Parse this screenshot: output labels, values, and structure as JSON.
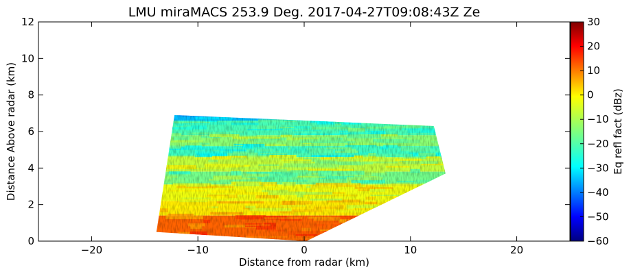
{
  "chart_data": {
    "type": "heatmap",
    "title": "LMU miraMACS 253.9 Deg. 2017-04-27T09:08:43Z  Ze",
    "xlabel": "Distance from radar (km)",
    "ylabel": "Distance Above radar  (km)",
    "xlim": [
      -25,
      25
    ],
    "ylim": [
      0,
      12
    ],
    "xticks": [
      -20,
      -10,
      0,
      10,
      20
    ],
    "xtick_labels": [
      "−20",
      "−10",
      "0",
      "10",
      "20"
    ],
    "yticks": [
      0,
      2,
      4,
      6,
      8,
      10,
      12
    ],
    "ytick_labels": [
      "0",
      "2",
      "4",
      "6",
      "8",
      "10",
      "12"
    ],
    "grid": false,
    "colorbar": {
      "label": "Eq refl fact (dBz)",
      "range": [
        -60,
        30
      ],
      "ticks": [
        30,
        20,
        10,
        0,
        -10,
        -20,
        -30,
        -40,
        -50,
        -60
      ],
      "tick_labels": [
        "30",
        "20",
        "10",
        "0",
        "−10",
        "−20",
        "−30",
        "−40",
        "−50",
        "−60"
      ],
      "colormap": "jet"
    },
    "data_region_km": [
      [
        -13.9,
        0.5
      ],
      [
        -12.2,
        6.9
      ],
      [
        12.2,
        6.3
      ],
      [
        13.3,
        3.7
      ],
      [
        0.2,
        0.0
      ]
    ],
    "layers": [
      {
        "altitude_km": [
          6.6,
          6.9
        ],
        "dbz": -32
      },
      {
        "altitude_km": [
          5.8,
          6.6
        ],
        "dbz": -20
      },
      {
        "altitude_km": [
          5.2,
          5.8
        ],
        "dbz": -14
      },
      {
        "altitude_km": [
          4.6,
          5.2
        ],
        "dbz": -21
      },
      {
        "altitude_km": [
          3.8,
          4.6
        ],
        "dbz": -9
      },
      {
        "altitude_km": [
          3.1,
          3.8
        ],
        "dbz": -16
      },
      {
        "altitude_km": [
          2.2,
          3.1
        ],
        "dbz": -5
      },
      {
        "altitude_km": [
          1.4,
          2.2
        ],
        "dbz": -2
      },
      {
        "altitude_km": [
          0.0,
          1.4
        ],
        "dbz": 10
      }
    ]
  }
}
